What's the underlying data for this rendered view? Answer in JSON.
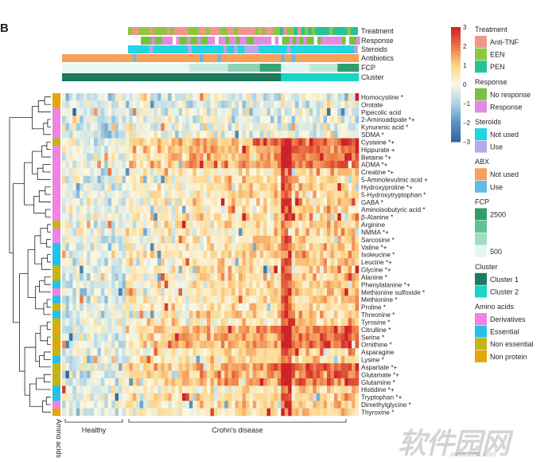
{
  "panel_label": "B",
  "watermark": {
    "main": "软件园网",
    "url": "www.2cto.com"
  },
  "chart_data": {
    "type": "heatmap",
    "annotation_tracks": [
      "Treatment",
      "Response",
      "Steroids",
      "Antibiotics",
      "FCP",
      "Cluster"
    ],
    "rows": [
      {
        "label": "Homocystine *",
        "group": "Non protein"
      },
      {
        "label": "Orotate",
        "group": "Non protein"
      },
      {
        "label": "Pipecolic acid",
        "group": "Derivatives"
      },
      {
        "label": "2-Aminoadipate *+",
        "group": "Derivatives"
      },
      {
        "label": "Kynurenic acid *",
        "group": "Derivatives"
      },
      {
        "label": "SDMA *",
        "group": "Derivatives"
      },
      {
        "label": "Cysteine *+",
        "group": "Non essential"
      },
      {
        "label": "Hippurate +",
        "group": "Derivatives"
      },
      {
        "label": "Betaine *+",
        "group": "Derivatives"
      },
      {
        "label": "ADMA *+",
        "group": "Derivatives"
      },
      {
        "label": "Creatine *+",
        "group": "Derivatives"
      },
      {
        "label": "5-Aminolevulinic acid +",
        "group": "Derivatives"
      },
      {
        "label": "Hydroxyproline *+",
        "group": "Derivatives"
      },
      {
        "label": "5-Hydroxytryptophan *",
        "group": "Derivatives"
      },
      {
        "label": "GABA *",
        "group": "Derivatives"
      },
      {
        "label": "Aminoisobutyric acid *",
        "group": "Derivatives"
      },
      {
        "label": "β-Alanine *",
        "group": "Derivatives"
      },
      {
        "label": "Arginine",
        "group": "Non essential"
      },
      {
        "label": "NMMA *+",
        "group": "Derivatives"
      },
      {
        "label": "Sarcosine *",
        "group": "Derivatives"
      },
      {
        "label": "Valine *+",
        "group": "Essential"
      },
      {
        "label": "Isoleucine *",
        "group": "Essential"
      },
      {
        "label": "Leucine *+",
        "group": "Essential"
      },
      {
        "label": "Glycine *+",
        "group": "Non essential"
      },
      {
        "label": "Alanine *",
        "group": "Non essential"
      },
      {
        "label": "Phenylalanine *+",
        "group": "Essential"
      },
      {
        "label": "Methionine sulfoxide *",
        "group": "Derivatives"
      },
      {
        "label": "Methionine *",
        "group": "Essential"
      },
      {
        "label": "Proline *",
        "group": "Non essential"
      },
      {
        "label": "Threonine *",
        "group": "Essential"
      },
      {
        "label": "Tyrosine *",
        "group": "Non essential"
      },
      {
        "label": "Citrulline *",
        "group": "Non protein"
      },
      {
        "label": "Serine *",
        "group": "Non essential"
      },
      {
        "label": "Ornithine *",
        "group": "Non protein"
      },
      {
        "label": "Asparagine",
        "group": "Non essential"
      },
      {
        "label": "Lysine *",
        "group": "Essential"
      },
      {
        "label": "Aspartate *+",
        "group": "Non essential"
      },
      {
        "label": "Glutamate *+",
        "group": "Non essential"
      },
      {
        "label": "Glutamine *",
        "group": "Non essential"
      },
      {
        "label": "Histidine *+",
        "group": "Essential"
      },
      {
        "label": "Tryptophan *+",
        "group": "Essential"
      },
      {
        "label": "Dimethylglycine *",
        "group": "Derivatives"
      },
      {
        "label": "Thyroxine *",
        "group": "Non protein"
      }
    ],
    "column_groups": [
      {
        "label": "Healthy",
        "count": 18
      },
      {
        "label": "Crohn's disease",
        "count": 66
      }
    ],
    "row_annotation_label": "Amino acids",
    "colorbar": {
      "min": -3,
      "max": 3,
      "ticks": [
        "3",
        "2",
        "1",
        "0",
        "−1",
        "−2",
        "−3"
      ]
    },
    "high_rows": [
      "Cysteine *+",
      "Hippurate +",
      "Betaine *+",
      "ADMA *+",
      "Citrulline *",
      "Serine *",
      "Ornithine *",
      "Aspartate *+",
      "Glutamate *+",
      "Glutamine *"
    ],
    "low_rows": [
      "Homocystine *",
      "Orotate",
      "Pipecolic acid",
      "2-Aminoadipate *+",
      "Kynurenic acid *",
      "SDMA *"
    ]
  },
  "legend": [
    {
      "title": "Treatment",
      "items": [
        {
          "label": "Anti-TNF",
          "color": "#f0968a"
        },
        {
          "label": "EEN",
          "color": "#8dc63f"
        },
        {
          "label": "PEN",
          "color": "#26c29a"
        }
      ]
    },
    {
      "title": "Response",
      "items": [
        {
          "label": "No response",
          "color": "#76c043"
        },
        {
          "label": "Response",
          "color": "#e28be0"
        }
      ]
    },
    {
      "title": "Steroids",
      "items": [
        {
          "label": "Not used",
          "color": "#1fd5e6"
        },
        {
          "label": "Use",
          "color": "#b9a8ea"
        }
      ]
    },
    {
      "title": "ABX",
      "items": [
        {
          "label": "Not used",
          "color": "#f6a15a"
        },
        {
          "label": "Use",
          "color": "#62b9ec"
        }
      ]
    },
    {
      "title": "FCP",
      "items": [
        {
          "label": "2500",
          "color": "#2e9e6c"
        },
        {
          "label": "",
          "color": "#63c295"
        },
        {
          "label": "",
          "color": "#9fdcc2"
        },
        {
          "label": "500",
          "color": "#e6f6f1"
        }
      ]
    },
    {
      "title": "Cluster",
      "items": [
        {
          "label": "Cluster 1",
          "color": "#1c7a5e"
        },
        {
          "label": "Cluster 2",
          "color": "#19d5c6"
        }
      ]
    },
    {
      "title": "Amino acids",
      "items": [
        {
          "label": "Derivatives",
          "color": "#ee83e3"
        },
        {
          "label": "Essential",
          "color": "#22c2ea"
        },
        {
          "label": "Non essential",
          "color": "#c3b515"
        },
        {
          "label": "Non protein",
          "color": "#e3a60d"
        }
      ]
    }
  ]
}
